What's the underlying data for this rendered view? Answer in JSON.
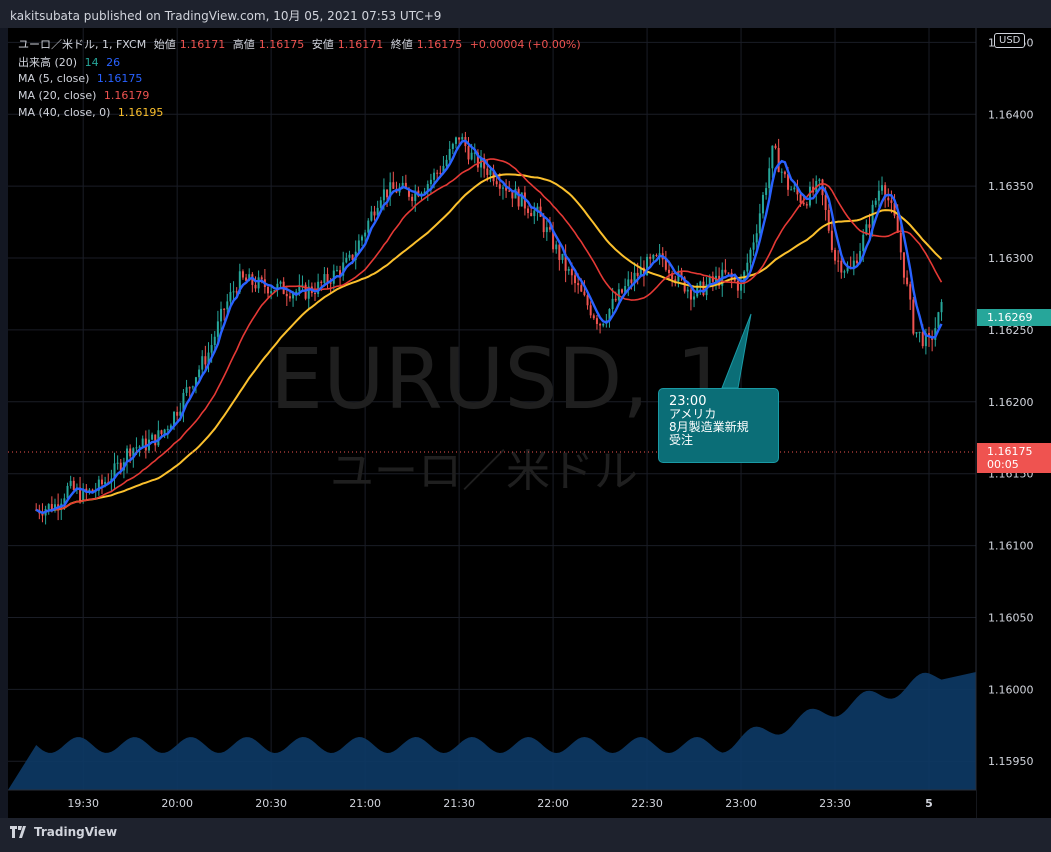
{
  "publisher_line": "kakitsubata published on TradingView.com, 10月 05, 2021 07:53 UTC+9",
  "legend": {
    "symbol": "ユーロ／米ドル, 1, FXCM",
    "open_label": "始値",
    "open": "1.16171",
    "high_label": "高値",
    "high": "1.16175",
    "low_label": "安値",
    "low": "1.16171",
    "close_label": "終値",
    "close": "1.16175",
    "change": "+0.00004 (+0.00%)",
    "volume_label": "出来高 (20)",
    "volume_v1": "14",
    "volume_v2": "26",
    "ma5_label": "MA (5, close)",
    "ma5_value": "1.16175",
    "ma20_label": "MA (20, close)",
    "ma20_value": "1.16179",
    "ma40_label": "MA (40, close, 0)",
    "ma40_value": "1.16195"
  },
  "watermark": {
    "symbol": "EURUSD, 1",
    "name": "ユーロ／米ドル"
  },
  "currency_button": "USD",
  "price_tags": {
    "current": "1.16269",
    "last": "1.16175",
    "countdown": "00:05"
  },
  "callout": {
    "time": "23:00",
    "line1": "アメリカ",
    "line2": "8月製造業新規",
    "line3": "受注"
  },
  "branding": "TradingView",
  "colors": {
    "background": "#000000",
    "up": "#26a69a",
    "down": "#ef5350",
    "ma5": "#2962ff",
    "ma20": "#e53935",
    "ma40": "#fbc02d",
    "volume": "#0d3a66"
  },
  "chart_data": {
    "type": "candlestick",
    "title": "ユーロ／米ドル, 1, FXCM",
    "ylim": [
      1.1593,
      1.1646
    ],
    "y_ticks": [
      "1.16450",
      "1.16400",
      "1.16350",
      "1.16300",
      "1.16250",
      "1.16200",
      "1.16150",
      "1.16100",
      "1.16050",
      "1.16000",
      "1.15950"
    ],
    "x_ticks": [
      "19:30",
      "20:00",
      "20:30",
      "21:00",
      "21:30",
      "22:00",
      "22:30",
      "23:00",
      "23:30",
      "5"
    ],
    "close_path": [
      [
        19.25,
        1.16125
      ],
      [
        19.35,
        1.16128
      ],
      [
        19.42,
        1.1614
      ],
      [
        19.5,
        1.16135
      ],
      [
        19.58,
        1.1614
      ],
      [
        19.67,
        1.16152
      ],
      [
        19.75,
        1.16168
      ],
      [
        19.83,
        1.1617
      ],
      [
        19.92,
        1.16178
      ],
      [
        20.0,
        1.16195
      ],
      [
        20.08,
        1.16215
      ],
      [
        20.17,
        1.16235
      ],
      [
        20.25,
        1.16265
      ],
      [
        20.33,
        1.16285
      ],
      [
        20.42,
        1.16282
      ],
      [
        20.5,
        1.1628
      ],
      [
        20.58,
        1.16278
      ],
      [
        20.67,
        1.16276
      ],
      [
        20.75,
        1.1628
      ],
      [
        20.83,
        1.16288
      ],
      [
        20.92,
        1.16298
      ],
      [
        21.0,
        1.1632
      ],
      [
        21.08,
        1.16345
      ],
      [
        21.17,
        1.16348
      ],
      [
        21.25,
        1.16345
      ],
      [
        21.33,
        1.16352
      ],
      [
        21.42,
        1.16365
      ],
      [
        21.5,
        1.16385
      ],
      [
        21.58,
        1.16368
      ],
      [
        21.67,
        1.1636
      ],
      [
        21.75,
        1.1635
      ],
      [
        21.83,
        1.1634
      ],
      [
        21.92,
        1.1633
      ],
      [
        22.0,
        1.1631
      ],
      [
        22.08,
        1.1629
      ],
      [
        22.17,
        1.1627
      ],
      [
        22.25,
        1.16255
      ],
      [
        22.33,
        1.1627
      ],
      [
        22.42,
        1.16285
      ],
      [
        22.5,
        1.16295
      ],
      [
        22.58,
        1.163
      ],
      [
        22.67,
        1.16285
      ],
      [
        22.75,
        1.16275
      ],
      [
        22.83,
        1.16282
      ],
      [
        22.92,
        1.16288
      ],
      [
        23.0,
        1.1628
      ],
      [
        23.08,
        1.1632
      ],
      [
        23.17,
        1.16375
      ],
      [
        23.25,
        1.1635
      ],
      [
        23.33,
        1.1634
      ],
      [
        23.42,
        1.1635
      ],
      [
        23.5,
        1.163
      ],
      [
        23.58,
        1.1629
      ],
      [
        23.67,
        1.1632
      ],
      [
        23.75,
        1.16355
      ],
      [
        23.83,
        1.1632
      ],
      [
        23.92,
        1.1625
      ],
      [
        24.0,
        1.1624
      ],
      [
        24.08,
        1.16269
      ]
    ],
    "series": [
      {
        "name": "MA (5, close)",
        "value": 1.16175
      },
      {
        "name": "MA (20, close)",
        "value": 1.16179
      },
      {
        "name": "MA (40, close, 0)",
        "value": 1.16195
      }
    ]
  }
}
